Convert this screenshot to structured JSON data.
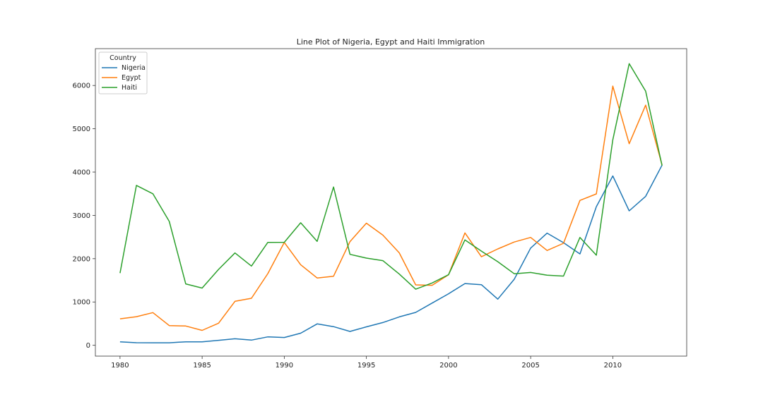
{
  "chart_data": {
    "type": "line",
    "title": "Line Plot of Nigeria, Egypt and Haiti Immigration",
    "xlabel": "",
    "ylabel": "",
    "xlim": [
      1978.5,
      2014.5
    ],
    "ylim": [
      -250,
      6850
    ],
    "x_ticks": [
      1980,
      1985,
      1990,
      1995,
      2000,
      2005,
      2010
    ],
    "y_ticks": [
      0,
      1000,
      2000,
      3000,
      4000,
      5000,
      6000
    ],
    "grid": false,
    "legend": {
      "title": "Country",
      "placement": "top-left"
    },
    "x": [
      1980,
      1981,
      1982,
      1983,
      1984,
      1985,
      1986,
      1987,
      1988,
      1989,
      1990,
      1991,
      1992,
      1993,
      1994,
      1995,
      1996,
      1997,
      1998,
      1999,
      2000,
      2001,
      2002,
      2003,
      2004,
      2005,
      2006,
      2007,
      2008,
      2009,
      2010,
      2011,
      2012,
      2013
    ],
    "series": [
      {
        "name": "Nigeria",
        "color": "#1f77b4",
        "values": [
          81,
          60,
          58,
          58,
          80,
          80,
          115,
          150,
          120,
          195,
          180,
          280,
          495,
          430,
          320,
          425,
          525,
          655,
          760,
          975,
          1190,
          1425,
          1400,
          1065,
          1525,
          2245,
          2590,
          2370,
          2110,
          3200,
          3910,
          3105,
          3440,
          4160
        ]
      },
      {
        "name": "Egypt",
        "color": "#ff7f0e",
        "values": [
          612,
          660,
          755,
          455,
          445,
          345,
          510,
          1015,
          1085,
          1655,
          2375,
          1860,
          1555,
          1595,
          2395,
          2820,
          2545,
          2135,
          1395,
          1385,
          1630,
          2595,
          2045,
          2225,
          2385,
          2490,
          2190,
          2355,
          3345,
          3495,
          5985,
          4655,
          5545,
          4165
        ]
      },
      {
        "name": "Haiti",
        "color": "#2ca02c",
        "values": [
          1666,
          3692,
          3498,
          2860,
          1418,
          1321,
          1753,
          2132,
          1829,
          2377,
          2379,
          2829,
          2399,
          3655,
          2100,
          2014,
          1955,
          1645,
          1295,
          1439,
          1631,
          2433,
          2174,
          1930,
          1652,
          1682,
          1619,
          1598,
          2491,
          2080,
          4744,
          6503,
          5868,
          4152
        ]
      }
    ]
  }
}
